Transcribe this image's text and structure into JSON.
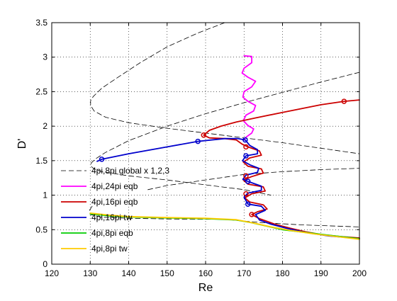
{
  "chart_data": {
    "type": "line",
    "xlabel": "Re",
    "ylabel": "D'",
    "xlim": [
      120,
      200
    ],
    "ylim": [
      0,
      3.5
    ],
    "xticks": [
      120,
      130,
      140,
      150,
      160,
      170,
      180,
      190,
      200
    ],
    "yticks": [
      0,
      0.5,
      1,
      1.5,
      2,
      2.5,
      3,
      3.5
    ],
    "grid": "dotted",
    "legend_position": "left-middle",
    "series": [
      {
        "name": "4pi,8pi global x 1,2,3",
        "color": "#000000",
        "dash": "dashed",
        "branches": [
          [
            [
              165,
              3.5
            ],
            [
              158,
              3.35
            ],
            [
              150,
              3.15
            ],
            [
              143,
              2.92
            ],
            [
              137,
              2.7
            ],
            [
              133,
              2.55
            ],
            [
              130.8,
              2.43
            ],
            [
              130.1,
              2.37
            ],
            [
              130.1,
              2.3
            ],
            [
              131,
              2.22
            ],
            [
              134,
              2.13
            ],
            [
              140,
              2.05
            ],
            [
              150,
              1.97
            ],
            [
              160,
              1.9
            ],
            [
              170,
              1.83
            ],
            [
              180,
              1.76
            ],
            [
              190,
              1.68
            ],
            [
              200,
              1.6
            ]
          ],
          [
            [
              200,
              2.78
            ],
            [
              190,
              2.64
            ],
            [
              180,
              2.49
            ],
            [
              170,
              2.34
            ],
            [
              160,
              2.18
            ],
            [
              150,
              2.0
            ],
            [
              140,
              1.79
            ],
            [
              134,
              1.62
            ],
            [
              131.5,
              1.53
            ],
            [
              130.3,
              1.47
            ],
            [
              130.2,
              1.42
            ],
            [
              131,
              1.38
            ],
            [
              133,
              1.34
            ],
            [
              140,
              1.28
            ],
            [
              150,
              1.22
            ],
            [
              160,
              1.15
            ],
            [
              170,
              1.08
            ],
            [
              177,
              1.0
            ]
          ],
          [
            [
              130.5,
              0.84
            ],
            [
              129.8,
              0.78
            ],
            [
              130,
              0.72
            ],
            [
              133,
              0.68
            ],
            [
              140,
              0.665
            ],
            [
              150,
              0.655
            ],
            [
              165,
              0.65
            ],
            [
              175,
              0.6
            ],
            [
              185,
              0.57
            ],
            [
              200,
              0.54
            ]
          ],
          [
            [
              145,
              1.08
            ],
            [
              150,
              1.14
            ],
            [
              160,
              1.22
            ],
            [
              170,
              1.3
            ],
            [
              180,
              1.34
            ],
            [
              190,
              1.37
            ],
            [
              200,
              1.39
            ]
          ]
        ]
      },
      {
        "name": "4pi,24pi eqb",
        "color": "#ff00ff",
        "dash": "solid",
        "branches": [
          [
            [
              170,
              3.02
            ],
            [
              172,
              3.01
            ],
            [
              172,
              2.92
            ],
            [
              170,
              2.84
            ],
            [
              169.5,
              2.77
            ],
            [
              171,
              2.71
            ],
            [
              173,
              2.65
            ],
            [
              172,
              2.57
            ],
            [
              170,
              2.5
            ],
            [
              169.7,
              2.42
            ],
            [
              171,
              2.36
            ],
            [
              173,
              2.3
            ],
            [
              172.5,
              2.22
            ],
            [
              170.5,
              2.16
            ],
            [
              169.8,
              2.08
            ],
            [
              171,
              2.01
            ],
            [
              172.5,
              1.96
            ],
            [
              172,
              1.9
            ],
            [
              170.5,
              1.84
            ],
            [
              170,
              1.8
            ]
          ]
        ]
      },
      {
        "name": "4pi,16pi eqb",
        "color": "#cc0000",
        "dash": "solid",
        "markers": [
          [
            159.5,
            1.87
          ],
          [
            196,
            2.36
          ],
          [
            170.5,
            1.7
          ],
          [
            170.5,
            1.28
          ],
          [
            170.5,
            1.02
          ],
          [
            172,
            0.72
          ]
        ],
        "branches": [
          [
            [
              200,
              2.38
            ],
            [
              196,
              2.36
            ],
            [
              190,
              2.31
            ],
            [
              180,
              2.2
            ],
            [
              173,
              2.12
            ],
            [
              168,
              2.06
            ],
            [
              164,
              2.0
            ],
            [
              161,
              1.94
            ],
            [
              159.5,
              1.87
            ],
            [
              161,
              1.83
            ],
            [
              165,
              1.82
            ],
            [
              168,
              1.8
            ],
            [
              169.5,
              1.74
            ],
            [
              171,
              1.7
            ],
            [
              174,
              1.64
            ],
            [
              174.5,
              1.58
            ],
            [
              171.5,
              1.54
            ],
            [
              169.8,
              1.48
            ],
            [
              171,
              1.42
            ],
            [
              174.5,
              1.38
            ],
            [
              175,
              1.32
            ],
            [
              172,
              1.27
            ],
            [
              169.8,
              1.22
            ],
            [
              171,
              1.16
            ],
            [
              175,
              1.12
            ],
            [
              175.5,
              1.06
            ],
            [
              172,
              1.02
            ],
            [
              170.2,
              0.96
            ],
            [
              171.5,
              0.9
            ],
            [
              175,
              0.86
            ],
            [
              176,
              0.8
            ],
            [
              173.5,
              0.76
            ],
            [
              172,
              0.72
            ],
            [
              174,
              0.66
            ],
            [
              178,
              0.58
            ],
            [
              182,
              0.52
            ],
            [
              186,
              0.47
            ],
            [
              190,
              0.43
            ],
            [
              195,
              0.4
            ],
            [
              200,
              0.38
            ]
          ]
        ]
      },
      {
        "name": "4pi,16pi tw",
        "color": "#0000cc",
        "dash": "solid",
        "markers": [
          [
            133,
            1.52
          ],
          [
            158,
            1.78
          ],
          [
            170.3,
            1.8
          ],
          [
            170.5,
            1.57
          ],
          [
            171,
            1.2
          ],
          [
            171,
            0.87
          ]
        ],
        "branches": [
          [
            [
              131.8,
              1.49
            ],
            [
              133,
              1.52
            ],
            [
              140,
              1.6
            ],
            [
              150,
              1.7
            ],
            [
              158,
              1.78
            ],
            [
              165,
              1.82
            ],
            [
              168.5,
              1.82
            ],
            [
              170.3,
              1.8
            ],
            [
              171.5,
              1.72
            ],
            [
              173.5,
              1.66
            ],
            [
              173.5,
              1.6
            ],
            [
              170.5,
              1.57
            ],
            [
              169.6,
              1.5
            ],
            [
              171.5,
              1.44
            ],
            [
              173.8,
              1.39
            ],
            [
              173.5,
              1.33
            ],
            [
              170.5,
              1.29
            ],
            [
              169.7,
              1.23
            ],
            [
              171,
              1.2
            ],
            [
              174.5,
              1.13
            ],
            [
              174.5,
              1.07
            ],
            [
              171,
              1.03
            ],
            [
              170,
              0.97
            ],
            [
              171,
              0.87
            ],
            [
              174.5,
              0.84
            ],
            [
              175.5,
              0.78
            ],
            [
              173,
              0.72
            ],
            [
              174,
              0.64
            ],
            [
              177,
              0.58
            ],
            [
              181,
              0.52
            ],
            [
              186,
              0.46
            ],
            [
              192,
              0.41
            ],
            [
              200,
              0.37
            ]
          ]
        ]
      },
      {
        "name": "4pi,8pi eqb",
        "color": "#00cc00",
        "dash": "solid",
        "branches": [
          [
            [
              130,
              0.73
            ],
            [
              135,
              0.7
            ],
            [
              140,
              0.685
            ],
            [
              150,
              0.67
            ],
            [
              160,
              0.66
            ],
            [
              168,
              0.64
            ],
            [
              172,
              0.6
            ],
            [
              176,
              0.55
            ],
            [
              180,
              0.5
            ],
            [
              186,
              0.46
            ],
            [
              192,
              0.42
            ],
            [
              200,
              0.37
            ]
          ]
        ]
      },
      {
        "name": "4pi,8pi tw",
        "color": "#ffcc00",
        "dash": "solid",
        "branches": [
          [
            [
              130,
              0.74
            ],
            [
              135,
              0.71
            ],
            [
              140,
              0.69
            ],
            [
              150,
              0.675
            ],
            [
              160,
              0.665
            ],
            [
              168,
              0.645
            ],
            [
              173,
              0.59
            ],
            [
              177,
              0.54
            ],
            [
              182,
              0.49
            ],
            [
              188,
              0.44
            ],
            [
              194,
              0.4
            ],
            [
              200,
              0.36
            ]
          ]
        ]
      }
    ]
  }
}
